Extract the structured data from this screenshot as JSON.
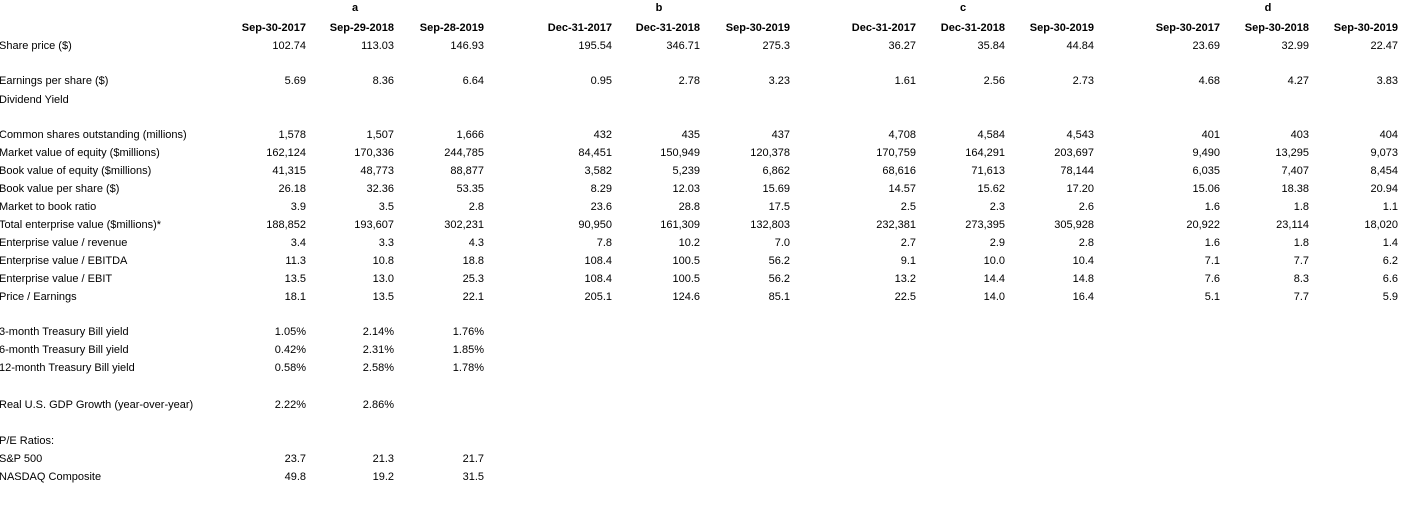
{
  "groups": [
    "a",
    "b",
    "c",
    "d"
  ],
  "dates": [
    [
      "Sep-30-2017",
      "Sep-29-2018",
      "Sep-28-2019"
    ],
    [
      "Dec-31-2017",
      "Dec-31-2018",
      "Sep-30-2019"
    ],
    [
      "Dec-31-2017",
      "Dec-31-2018",
      "Sep-30-2019"
    ],
    [
      "Sep-30-2017",
      "Sep-30-2018",
      "Sep-30-2019"
    ]
  ],
  "company_rows": [
    {
      "label": "Share price ($)",
      "values": [
        "102.74",
        "113.03",
        "146.93",
        "195.54",
        "346.71",
        "275.3",
        "36.27",
        "35.84",
        "44.84",
        "23.69",
        "32.99",
        "22.47"
      ]
    },
    {
      "label": "Earnings per share ($)",
      "values": [
        "5.69",
        "8.36",
        "6.64",
        "0.95",
        "2.78",
        "3.23",
        "1.61",
        "2.56",
        "2.73",
        "4.68",
        "4.27",
        "3.83"
      ]
    },
    {
      "label": "Dividend Yield",
      "values": []
    },
    {
      "label": "Common shares outstanding (millions)",
      "values": [
        "1,578",
        "1,507",
        "1,666",
        "432",
        "435",
        "437",
        "4,708",
        "4,584",
        "4,543",
        "401",
        "403",
        "404"
      ]
    },
    {
      "label": "Market value of equity ($millions)",
      "values": [
        "162,124",
        "170,336",
        "244,785",
        "84,451",
        "150,949",
        "120,378",
        "170,759",
        "164,291",
        "203,697",
        "9,490",
        "13,295",
        "9,073"
      ]
    },
    {
      "label": "Book value of equity ($millions)",
      "values": [
        "41,315",
        "48,773",
        "88,877",
        "3,582",
        "5,239",
        "6,862",
        "68,616",
        "71,613",
        "78,144",
        "6,035",
        "7,407",
        "8,454"
      ]
    },
    {
      "label": "Book value per share ($)",
      "values": [
        "26.18",
        "32.36",
        "53.35",
        "8.29",
        "12.03",
        "15.69",
        "14.57",
        "15.62",
        "17.20",
        "15.06",
        "18.38",
        "20.94"
      ]
    },
    {
      "label": "Market to book ratio",
      "values": [
        "3.9",
        "3.5",
        "2.8",
        "23.6",
        "28.8",
        "17.5",
        "2.5",
        "2.3",
        "2.6",
        "1.6",
        "1.8",
        "1.1"
      ]
    },
    {
      "label": "Total enterprise value ($millions)*",
      "values": [
        "188,852",
        "193,607",
        "302,231",
        "90,950",
        "161,309",
        "132,803",
        "232,381",
        "273,395",
        "305,928",
        "20,922",
        "23,114",
        "18,020"
      ]
    },
    {
      "label": "Enterprise value / revenue",
      "values": [
        "3.4",
        "3.3",
        "4.3",
        "7.8",
        "10.2",
        "7.0",
        "2.7",
        "2.9",
        "2.8",
        "1.6",
        "1.8",
        "1.4"
      ]
    },
    {
      "label": "Enterprise value / EBITDA",
      "values": [
        "11.3",
        "10.8",
        "18.8",
        "108.4",
        "100.5",
        "56.2",
        "9.1",
        "10.0",
        "10.4",
        "7.1",
        "7.7",
        "6.2"
      ]
    },
    {
      "label": "Enterprise value / EBIT",
      "values": [
        "13.5",
        "13.0",
        "25.3",
        "108.4",
        "100.5",
        "56.2",
        "13.2",
        "14.4",
        "14.8",
        "7.6",
        "8.3",
        "6.6"
      ]
    },
    {
      "label": "Price / Earnings",
      "values": [
        "18.1",
        "13.5",
        "22.1",
        "205.1",
        "124.6",
        "85.1",
        "22.5",
        "14.0",
        "16.4",
        "5.1",
        "7.7",
        "5.9"
      ]
    }
  ],
  "treasury_rows": [
    {
      "label": "3-month Treasury Bill yield",
      "values": [
        "1.05%",
        "2.14%",
        "1.76%"
      ]
    },
    {
      "label": "6-month Treasury Bill yield",
      "values": [
        "0.42%",
        "2.31%",
        "1.85%"
      ]
    },
    {
      "label": "12-month Treasury Bill yield",
      "values": [
        "0.58%",
        "2.58%",
        "1.78%"
      ]
    }
  ],
  "gdp_row": {
    "label": "Real U.S. GDP Growth (year-over-year)",
    "values": [
      "2.22%",
      "2.86%"
    ]
  },
  "pe_heading": "P/E Ratios:",
  "pe_rows": [
    {
      "label": "S&P 500",
      "values": [
        "23.7",
        "21.3",
        "21.7"
      ]
    },
    {
      "label": "NASDAQ Composite",
      "values": [
        "49.8",
        "19.2",
        "31.5"
      ]
    }
  ]
}
